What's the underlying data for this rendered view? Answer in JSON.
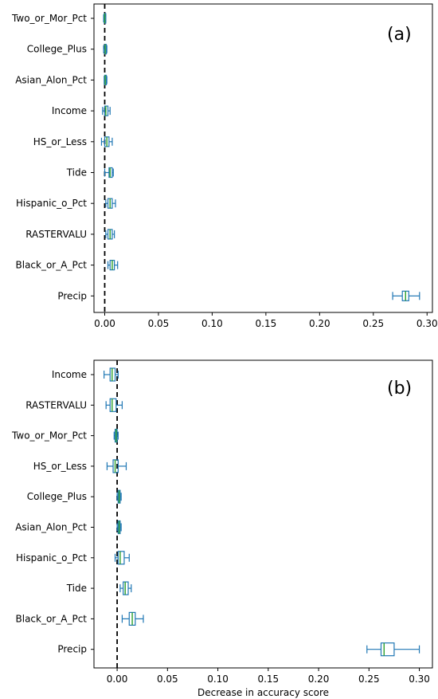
{
  "chart_data": [
    {
      "type": "boxplot",
      "panel_label": "(a)",
      "orientation": "horizontal",
      "xlabel": "",
      "xlim": [
        -0.01,
        0.305
      ],
      "xticks": [
        "0.00",
        "0.05",
        "0.10",
        "0.15",
        "0.20",
        "0.25",
        "0.30"
      ],
      "reference_line": 0.0,
      "categories": [
        "Two_or_Mor_Pct",
        "College_Plus",
        "Asian_Alon_Pct",
        "Income",
        "HS_or_Less",
        "Tide",
        "Hispanic_o_Pct",
        "RASTERVALU",
        "Black_or_A_Pct",
        "Precip"
      ],
      "boxes": [
        {
          "category": "Two_or_Mor_Pct",
          "whislo": -0.001,
          "q1": -0.0005,
          "med": 0.0,
          "q3": 0.0005,
          "whishi": 0.001
        },
        {
          "category": "College_Plus",
          "whislo": -0.001,
          "q1": 0.0,
          "med": 0.0005,
          "q3": 0.001,
          "whishi": 0.002
        },
        {
          "category": "Asian_Alon_Pct",
          "whislo": -0.0005,
          "q1": 0.0,
          "med": 0.0005,
          "q3": 0.001,
          "whishi": 0.002
        },
        {
          "category": "Income",
          "whislo": -0.002,
          "q1": 0.0,
          "med": 0.001,
          "q3": 0.003,
          "whishi": 0.005
        },
        {
          "category": "HS_or_Less",
          "whislo": -0.003,
          "q1": 0.0,
          "med": 0.002,
          "q3": 0.004,
          "whishi": 0.007
        },
        {
          "category": "Tide",
          "whislo": 0.0,
          "q1": 0.004,
          "med": 0.005,
          "q3": 0.007,
          "whishi": 0.008
        },
        {
          "category": "Hispanic_o_Pct",
          "whislo": 0.001,
          "q1": 0.003,
          "med": 0.005,
          "q3": 0.007,
          "whishi": 0.01
        },
        {
          "category": "RASTERVALU",
          "whislo": 0.001,
          "q1": 0.003,
          "med": 0.005,
          "q3": 0.007,
          "whishi": 0.009
        },
        {
          "category": "Black_or_A_Pct",
          "whislo": 0.003,
          "q1": 0.005,
          "med": 0.007,
          "q3": 0.009,
          "whishi": 0.012
        },
        {
          "category": "Precip",
          "whislo": 0.268,
          "q1": 0.277,
          "med": 0.28,
          "q3": 0.283,
          "whishi": 0.293
        }
      ]
    },
    {
      "type": "boxplot",
      "panel_label": "(b)",
      "orientation": "horizontal",
      "xlabel": "Decrease in accuracy score",
      "xlim": [
        -0.023,
        0.313
      ],
      "xticks": [
        "0.00",
        "0.05",
        "0.10",
        "0.15",
        "0.20",
        "0.25",
        "0.30"
      ],
      "reference_line": 0.0,
      "categories": [
        "Income",
        "RASTERVALU",
        "Two_or_Mor_Pct",
        "HS_or_Less",
        "College_Plus",
        "Asian_Alon_Pct",
        "Hispanic_o_Pct",
        "Tide",
        "Black_or_A_Pct",
        "Precip"
      ],
      "boxes": [
        {
          "category": "Income",
          "whislo": -0.013,
          "q1": -0.007,
          "med": -0.005,
          "q3": -0.002,
          "whishi": 0.001
        },
        {
          "category": "RASTERVALU",
          "whislo": -0.011,
          "q1": -0.007,
          "med": -0.005,
          "q3": -0.001,
          "whishi": 0.005
        },
        {
          "category": "Two_or_Mor_Pct",
          "whislo": -0.003,
          "q1": -0.002,
          "med": -0.001,
          "q3": 0.0,
          "whishi": 0.001
        },
        {
          "category": "HS_or_Less",
          "whislo": -0.01,
          "q1": -0.004,
          "med": -0.002,
          "q3": 0.001,
          "whishi": 0.009
        },
        {
          "category": "College_Plus",
          "whislo": 0.0,
          "q1": 0.001,
          "med": 0.002,
          "q3": 0.003,
          "whishi": 0.004
        },
        {
          "category": "Asian_Alon_Pct",
          "whislo": 0.0,
          "q1": 0.001,
          "med": 0.002,
          "q3": 0.003,
          "whishi": 0.004
        },
        {
          "category": "Hispanic_o_Pct",
          "whislo": -0.002,
          "q1": 0.001,
          "med": 0.003,
          "q3": 0.007,
          "whishi": 0.012
        },
        {
          "category": "Tide",
          "whislo": 0.003,
          "q1": 0.006,
          "med": 0.008,
          "q3": 0.011,
          "whishi": 0.014
        },
        {
          "category": "Black_or_A_Pct",
          "whislo": 0.005,
          "q1": 0.012,
          "med": 0.015,
          "q3": 0.018,
          "whishi": 0.026
        },
        {
          "category": "Precip",
          "whislo": 0.248,
          "q1": 0.262,
          "med": 0.265,
          "q3": 0.275,
          "whishi": 0.3
        }
      ]
    }
  ],
  "colors": {
    "box_edge": "#1f77b4",
    "median": "#2ca02c",
    "reference_line": "#000000",
    "axes": "#000000"
  }
}
